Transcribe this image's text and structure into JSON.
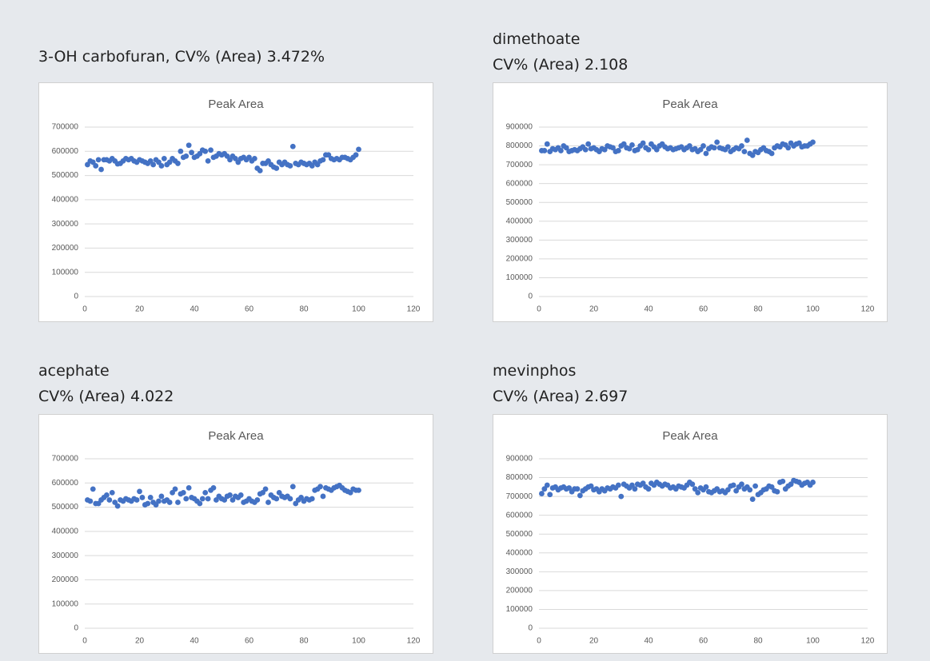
{
  "chart_data": [
    {
      "type": "scatter",
      "heading": [
        "3-OH carbofuran, CV% (Area) 3.472%"
      ],
      "title": "Peak Area",
      "color": "#4472c4",
      "grid": true,
      "x": [
        1,
        2,
        3,
        4,
        5,
        6,
        7,
        8,
        9,
        10,
        11,
        12,
        13,
        14,
        15,
        16,
        17,
        18,
        19,
        20,
        21,
        22,
        23,
        24,
        25,
        26,
        27,
        28,
        29,
        30,
        31,
        32,
        33,
        34,
        35,
        36,
        37,
        38,
        39,
        40,
        41,
        42,
        43,
        44,
        45,
        46,
        47,
        48,
        49,
        50,
        51,
        52,
        53,
        54,
        55,
        56,
        57,
        58,
        59,
        60,
        61,
        62,
        63,
        64,
        65,
        66,
        67,
        68,
        69,
        70,
        71,
        72,
        73,
        74,
        75,
        76,
        77,
        78,
        79,
        80,
        81,
        82,
        83,
        84,
        85,
        86,
        87,
        88,
        89,
        90,
        91,
        92,
        93,
        94,
        95,
        96,
        97,
        98,
        99,
        100
      ],
      "values": [
        545000,
        560000,
        555000,
        540000,
        565000,
        525000,
        565000,
        565000,
        560000,
        570000,
        560000,
        548000,
        550000,
        560000,
        570000,
        565000,
        570000,
        560000,
        555000,
        565000,
        560000,
        555000,
        550000,
        560000,
        545000,
        565000,
        555000,
        540000,
        570000,
        545000,
        555000,
        570000,
        560000,
        550000,
        600000,
        575000,
        580000,
        625000,
        595000,
        575000,
        580000,
        590000,
        605000,
        600000,
        560000,
        605000,
        575000,
        580000,
        590000,
        585000,
        590000,
        580000,
        565000,
        580000,
        570000,
        555000,
        570000,
        575000,
        565000,
        575000,
        560000,
        570000,
        530000,
        520000,
        550000,
        550000,
        560000,
        545000,
        535000,
        530000,
        555000,
        545000,
        555000,
        545000,
        540000,
        620000,
        550000,
        545000,
        555000,
        550000,
        545000,
        550000,
        540000,
        555000,
        545000,
        560000,
        565000,
        585000,
        585000,
        570000,
        565000,
        570000,
        565000,
        575000,
        575000,
        570000,
        565000,
        575000,
        585000,
        608000
      ],
      "xlim": [
        0,
        120
      ],
      "xticks": [
        0,
        20,
        40,
        60,
        80,
        100,
        120
      ],
      "ylim": [
        0,
        700000
      ],
      "yticks": [
        0,
        100000,
        200000,
        300000,
        400000,
        500000,
        600000,
        700000
      ]
    },
    {
      "type": "scatter",
      "heading": [
        "dimethoate",
        "CV% (Area) 2.108"
      ],
      "title": "Peak Area",
      "color": "#4472c4",
      "grid": true,
      "x": [
        1,
        2,
        3,
        4,
        5,
        6,
        7,
        8,
        9,
        10,
        11,
        12,
        13,
        14,
        15,
        16,
        17,
        18,
        19,
        20,
        21,
        22,
        23,
        24,
        25,
        26,
        27,
        28,
        29,
        30,
        31,
        32,
        33,
        34,
        35,
        36,
        37,
        38,
        39,
        40,
        41,
        42,
        43,
        44,
        45,
        46,
        47,
        48,
        49,
        50,
        51,
        52,
        53,
        54,
        55,
        56,
        57,
        58,
        59,
        60,
        61,
        62,
        63,
        64,
        65,
        66,
        67,
        68,
        69,
        70,
        71,
        72,
        73,
        74,
        75,
        76,
        77,
        78,
        79,
        80,
        81,
        82,
        83,
        84,
        85,
        86,
        87,
        88,
        89,
        90,
        91,
        92,
        93,
        94,
        95,
        96,
        97,
        98,
        99,
        100
      ],
      "values": [
        775000,
        775000,
        810000,
        770000,
        785000,
        780000,
        790000,
        775000,
        800000,
        790000,
        770000,
        775000,
        780000,
        775000,
        785000,
        795000,
        780000,
        810000,
        785000,
        790000,
        780000,
        770000,
        785000,
        780000,
        800000,
        795000,
        790000,
        770000,
        775000,
        800000,
        810000,
        790000,
        785000,
        805000,
        775000,
        780000,
        800000,
        815000,
        790000,
        780000,
        810000,
        795000,
        780000,
        800000,
        810000,
        795000,
        785000,
        790000,
        780000,
        785000,
        790000,
        795000,
        780000,
        790000,
        800000,
        780000,
        785000,
        770000,
        780000,
        800000,
        760000,
        785000,
        795000,
        790000,
        820000,
        790000,
        785000,
        780000,
        795000,
        770000,
        780000,
        790000,
        785000,
        800000,
        770000,
        830000,
        760000,
        750000,
        770000,
        765000,
        780000,
        790000,
        775000,
        770000,
        760000,
        790000,
        800000,
        795000,
        810000,
        805000,
        790000,
        815000,
        800000,
        810000,
        815000,
        795000,
        800000,
        800000,
        810000,
        820000
      ],
      "xlim": [
        0,
        120
      ],
      "xticks": [
        0,
        20,
        40,
        60,
        80,
        100,
        120
      ],
      "ylim": [
        0,
        900000
      ],
      "yticks": [
        0,
        100000,
        200000,
        300000,
        400000,
        500000,
        600000,
        700000,
        800000,
        900000
      ]
    },
    {
      "type": "scatter",
      "heading": [
        "acephate",
        "CV% (Area) 4.022"
      ],
      "title": "Peak Area",
      "color": "#4472c4",
      "grid": true,
      "x": [
        1,
        2,
        3,
        4,
        5,
        6,
        7,
        8,
        9,
        10,
        11,
        12,
        13,
        14,
        15,
        16,
        17,
        18,
        19,
        20,
        21,
        22,
        23,
        24,
        25,
        26,
        27,
        28,
        29,
        30,
        31,
        32,
        33,
        34,
        35,
        36,
        37,
        38,
        39,
        40,
        41,
        42,
        43,
        44,
        45,
        46,
        47,
        48,
        49,
        50,
        51,
        52,
        53,
        54,
        55,
        56,
        57,
        58,
        59,
        60,
        61,
        62,
        63,
        64,
        65,
        66,
        67,
        68,
        69,
        70,
        71,
        72,
        73,
        74,
        75,
        76,
        77,
        78,
        79,
        80,
        81,
        82,
        83,
        84,
        85,
        86,
        87,
        88,
        89,
        90,
        91,
        92,
        93,
        94,
        95,
        96,
        97,
        98,
        99,
        100
      ],
      "values": [
        530000,
        525000,
        575000,
        515000,
        515000,
        530000,
        540000,
        550000,
        530000,
        560000,
        520000,
        505000,
        530000,
        525000,
        535000,
        530000,
        525000,
        535000,
        530000,
        565000,
        540000,
        510000,
        515000,
        540000,
        520000,
        510000,
        525000,
        545000,
        525000,
        530000,
        520000,
        560000,
        575000,
        520000,
        555000,
        560000,
        535000,
        580000,
        540000,
        535000,
        525000,
        515000,
        535000,
        560000,
        535000,
        570000,
        580000,
        530000,
        545000,
        535000,
        530000,
        545000,
        550000,
        530000,
        545000,
        540000,
        550000,
        520000,
        525000,
        535000,
        525000,
        520000,
        530000,
        555000,
        560000,
        575000,
        520000,
        550000,
        540000,
        535000,
        560000,
        545000,
        540000,
        545000,
        535000,
        585000,
        515000,
        530000,
        540000,
        525000,
        535000,
        530000,
        535000,
        570000,
        575000,
        585000,
        545000,
        580000,
        575000,
        570000,
        580000,
        585000,
        590000,
        580000,
        570000,
        565000,
        560000,
        575000,
        570000,
        570000
      ],
      "xlim": [
        0,
        120
      ],
      "xticks": [
        0,
        20,
        40,
        60,
        80,
        100,
        120
      ],
      "ylim": [
        0,
        700000
      ],
      "yticks": [
        0,
        100000,
        200000,
        300000,
        400000,
        500000,
        600000,
        700000
      ]
    },
    {
      "type": "scatter",
      "heading": [
        "mevinphos",
        "CV% (Area) 2.697"
      ],
      "title": "Peak Area",
      "color": "#4472c4",
      "grid": true,
      "x": [
        1,
        2,
        3,
        4,
        5,
        6,
        7,
        8,
        9,
        10,
        11,
        12,
        13,
        14,
        15,
        16,
        17,
        18,
        19,
        20,
        21,
        22,
        23,
        24,
        25,
        26,
        27,
        28,
        29,
        30,
        31,
        32,
        33,
        34,
        35,
        36,
        37,
        38,
        39,
        40,
        41,
        42,
        43,
        44,
        45,
        46,
        47,
        48,
        49,
        50,
        51,
        52,
        53,
        54,
        55,
        56,
        57,
        58,
        59,
        60,
        61,
        62,
        63,
        64,
        65,
        66,
        67,
        68,
        69,
        70,
        71,
        72,
        73,
        74,
        75,
        76,
        77,
        78,
        79,
        80,
        81,
        82,
        83,
        84,
        85,
        86,
        87,
        88,
        89,
        90,
        91,
        92,
        93,
        94,
        95,
        96,
        97,
        98,
        99,
        100
      ],
      "values": [
        715000,
        740000,
        760000,
        710000,
        745000,
        750000,
        735000,
        745000,
        750000,
        740000,
        745000,
        725000,
        740000,
        740000,
        705000,
        730000,
        740000,
        750000,
        755000,
        735000,
        740000,
        725000,
        740000,
        730000,
        745000,
        740000,
        750000,
        745000,
        760000,
        700000,
        765000,
        755000,
        745000,
        760000,
        740000,
        765000,
        760000,
        770000,
        750000,
        740000,
        770000,
        760000,
        775000,
        765000,
        755000,
        765000,
        760000,
        745000,
        750000,
        740000,
        755000,
        750000,
        745000,
        760000,
        775000,
        765000,
        740000,
        720000,
        745000,
        735000,
        750000,
        725000,
        720000,
        730000,
        740000,
        725000,
        730000,
        720000,
        735000,
        755000,
        760000,
        730000,
        750000,
        765000,
        740000,
        750000,
        735000,
        685000,
        755000,
        710000,
        720000,
        735000,
        740000,
        755000,
        750000,
        730000,
        725000,
        775000,
        780000,
        740000,
        755000,
        765000,
        785000,
        780000,
        775000,
        760000,
        770000,
        775000,
        760000,
        775000
      ],
      "xlim": [
        0,
        120
      ],
      "xticks": [
        0,
        20,
        40,
        60,
        80,
        100,
        120
      ],
      "ylim": [
        0,
        900000
      ],
      "yticks": [
        0,
        100000,
        200000,
        300000,
        400000,
        500000,
        600000,
        700000,
        800000,
        900000
      ]
    }
  ]
}
